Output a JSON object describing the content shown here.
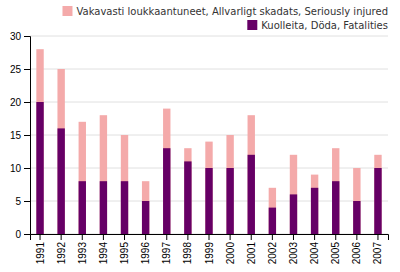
{
  "chart_data": {
    "type": "bar",
    "categories": [
      "1991",
      "1992",
      "1993",
      "1994",
      "1995",
      "1996",
      "1997",
      "1998",
      "1999",
      "2000",
      "2001",
      "2002",
      "2003",
      "2004",
      "2005",
      "2006",
      "2007"
    ],
    "series": [
      {
        "name": "Vakavasti loukkaantuneet, Allvarligt skadats, Seriously injured",
        "color": "#F4AAAA",
        "values": [
          28,
          25,
          17,
          18,
          15,
          8,
          19,
          13,
          14,
          15,
          18,
          7,
          12,
          9,
          13,
          10,
          12
        ]
      },
      {
        "name": "Kuolleita, Döda, Fatalities",
        "color": "#660066",
        "values": [
          20,
          16,
          8,
          8,
          8,
          5,
          13,
          11,
          10,
          10,
          12,
          4,
          6,
          7,
          8,
          5,
          10
        ]
      }
    ],
    "stacked": false,
    "ylim": [
      0,
      30
    ],
    "yticks": [
      0,
      5,
      10,
      15,
      20,
      25,
      30
    ],
    "grid": true,
    "legend": "top-right"
  }
}
